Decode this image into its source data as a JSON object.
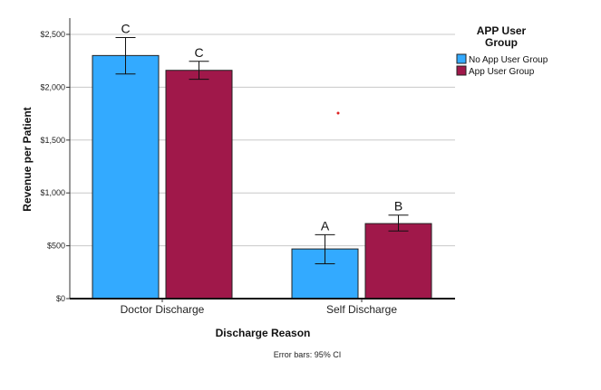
{
  "chart_data": {
    "type": "bar",
    "categories": [
      "Doctor Discharge",
      "Self Discharge"
    ],
    "series": [
      {
        "name": "No App User Group",
        "color": "#33aaff",
        "values": [
          2300,
          470
        ],
        "ci_low": [
          2125,
          330
        ],
        "ci_high": [
          2470,
          605
        ],
        "group_labels": [
          "C",
          "A"
        ]
      },
      {
        "name": "App User Group",
        "color": "#a0184a",
        "values": [
          2160,
          710
        ],
        "ci_low": [
          2075,
          640
        ],
        "ci_high": [
          2245,
          790
        ],
        "group_labels": [
          "C",
          "B"
        ]
      }
    ],
    "xlabel": "Discharge Reason",
    "ylabel": "Revenue per Patient",
    "ylim": [
      0,
      2500
    ],
    "yticks": [
      0,
      500,
      1000,
      1500,
      2000,
      2500
    ],
    "ytick_labels": [
      "$0",
      "$500",
      "$1,000",
      "$1,500",
      "$2,000",
      "$2,500"
    ],
    "grid": true,
    "legend": {
      "title_lines": [
        "APP User",
        "Group"
      ],
      "placement": "top-right"
    },
    "footnote": "Error bars: 95% CI"
  }
}
